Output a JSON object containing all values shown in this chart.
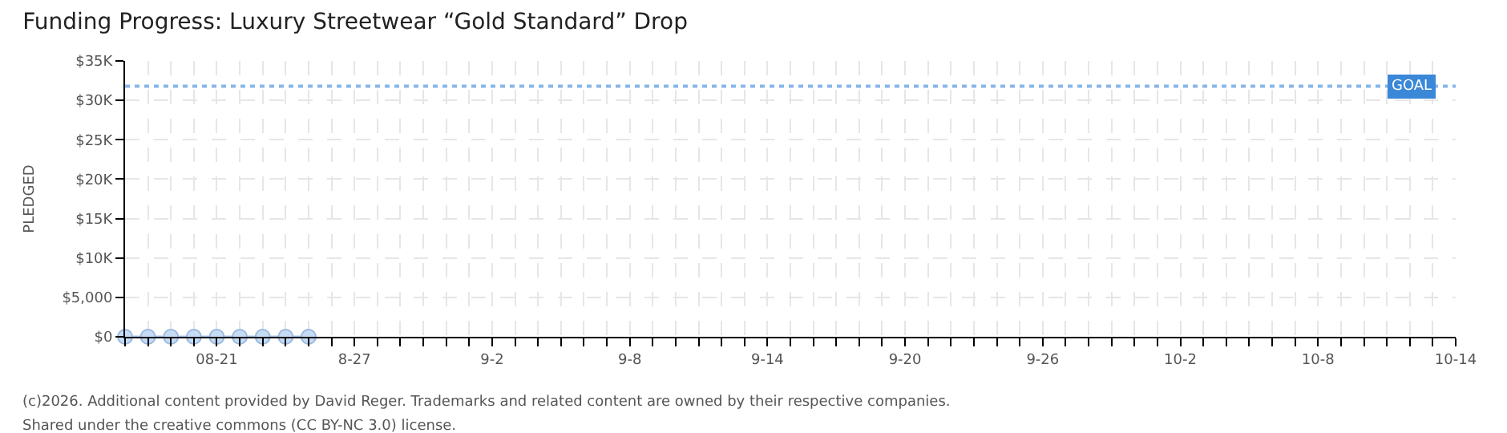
{
  "chart_data": {
    "type": "line",
    "title": "Funding Progress: Luxury Streetwear “Gold Standard” Drop",
    "ylabel": "PLEDGED",
    "x": [
      "--08-17",
      "--08-18",
      "--08-19",
      "--08-20",
      "--08-21",
      "--08-22",
      "--08-23",
      "--08-24",
      "--08-25"
    ],
    "series": [
      {
        "color": "#c6dcf5",
        "values": [
          0,
          0,
          0,
          0,
          0,
          0,
          0,
          0,
          0
        ]
      }
    ],
    "marker": "circle",
    "xlim": [
      "--08-17",
      "--10-14"
    ],
    "xticks": [
      {
        "value": "--08-17",
        "label": null
      },
      {
        "value": "--08-18",
        "label": null
      },
      {
        "value": "--08-19",
        "label": null
      },
      {
        "value": "--08-20",
        "label": null
      },
      {
        "value": "--08-21",
        "label": "08-21"
      },
      {
        "value": "--08-22",
        "label": null
      },
      {
        "value": "--08-23",
        "label": null
      },
      {
        "value": "--08-24",
        "label": null
      },
      {
        "value": "--08-25",
        "label": null
      },
      {
        "value": "--08-26",
        "label": null
      },
      {
        "value": "--08-27",
        "label": "8-27"
      },
      {
        "value": "--08-28",
        "label": null
      },
      {
        "value": "--08-29",
        "label": null
      },
      {
        "value": "--08-30",
        "label": null
      },
      {
        "value": "--08-31",
        "label": null
      },
      {
        "value": "--09-01",
        "label": null
      },
      {
        "value": "--09-02",
        "label": "9-2"
      },
      {
        "value": "--09-03",
        "label": null
      },
      {
        "value": "--09-04",
        "label": null
      },
      {
        "value": "--09-05",
        "label": null
      },
      {
        "value": "--09-06",
        "label": null
      },
      {
        "value": "--09-07",
        "label": null
      },
      {
        "value": "--09-08",
        "label": "9-8"
      },
      {
        "value": "--09-09",
        "label": null
      },
      {
        "value": "--09-10",
        "label": null
      },
      {
        "value": "--09-11",
        "label": null
      },
      {
        "value": "--09-12",
        "label": null
      },
      {
        "value": "--09-13",
        "label": null
      },
      {
        "value": "--09-14",
        "label": "9-14"
      },
      {
        "value": "--09-15",
        "label": null
      },
      {
        "value": "--09-16",
        "label": null
      },
      {
        "value": "--09-17",
        "label": null
      },
      {
        "value": "--09-18",
        "label": null
      },
      {
        "value": "--09-19",
        "label": null
      },
      {
        "value": "--09-20",
        "label": "9-20"
      },
      {
        "value": "--09-21",
        "label": null
      },
      {
        "value": "--09-22",
        "label": null
      },
      {
        "value": "--09-23",
        "label": null
      },
      {
        "value": "--09-24",
        "label": null
      },
      {
        "value": "--09-25",
        "label": null
      },
      {
        "value": "--09-26",
        "label": "9-26"
      },
      {
        "value": "--09-27",
        "label": null
      },
      {
        "value": "--09-28",
        "label": null
      },
      {
        "value": "--09-29",
        "label": null
      },
      {
        "value": "--09-30",
        "label": null
      },
      {
        "value": "--10-01",
        "label": null
      },
      {
        "value": "--10-02",
        "label": "10-2"
      },
      {
        "value": "--10-03",
        "label": null
      },
      {
        "value": "--10-04",
        "label": null
      },
      {
        "value": "--10-05",
        "label": null
      },
      {
        "value": "--10-06",
        "label": null
      },
      {
        "value": "--10-07",
        "label": null
      },
      {
        "value": "--10-08",
        "label": "10-8"
      },
      {
        "value": "--10-09",
        "label": null
      },
      {
        "value": "--10-10",
        "label": null
      },
      {
        "value": "--10-11",
        "label": null
      },
      {
        "value": "--10-12",
        "label": null
      },
      {
        "value": "--10-13",
        "label": null
      },
      {
        "value": "--10-14",
        "label": "10-14"
      }
    ],
    "ylim": [
      0,
      35000
    ],
    "yticks": [
      {
        "value": 0,
        "label": "$0"
      },
      {
        "value": 5000,
        "label": "$5,000"
      },
      {
        "value": 10000,
        "label": "$10K"
      },
      {
        "value": 15000,
        "label": "$15K"
      },
      {
        "value": 20000,
        "label": "$20K"
      },
      {
        "value": 25000,
        "label": "$25K"
      },
      {
        "value": 30000,
        "label": "$30K"
      },
      {
        "value": 35000,
        "label": "$35K"
      }
    ],
    "ref_lines": [
      {
        "axis": "y",
        "value": 31800,
        "label": "GOAL",
        "color": "#3b87d8",
        "line_style": "dotted"
      }
    ],
    "grid": true,
    "annotations": [
      "(c)2026. Additional content provided by David Reger. Trademarks and related content are owned by their respective companies.",
      "Shared under the creative commons (CC BY-NC 3.0) license."
    ]
  }
}
